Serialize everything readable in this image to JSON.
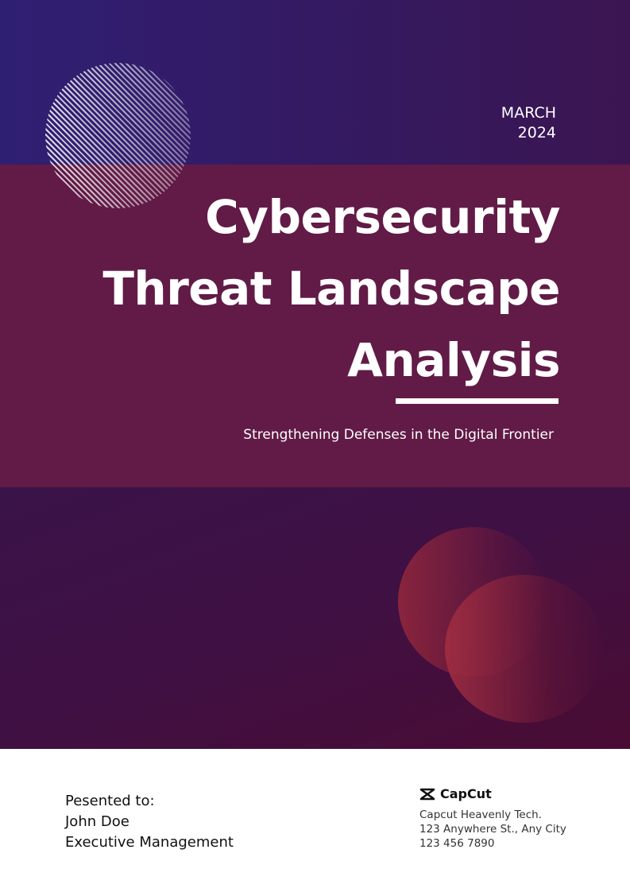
{
  "header": {
    "month": "MARCH",
    "year": "2024"
  },
  "title": {
    "line1": "Cybersecurity",
    "line2": "Threat Landscape",
    "line3": "Analysis"
  },
  "subtitle": "Strengthening Defenses in the Digital Frontier",
  "presented": {
    "label": "Pesented to:",
    "name": "John Doe",
    "role": "Executive Management"
  },
  "company": {
    "brand": "CapCut",
    "name": "Capcut Heavenly Tech.",
    "address": "123 Anywhere St., Any City",
    "phone": "123 456 7890"
  },
  "colors": {
    "top": "#2f1f73",
    "band": "#611b46",
    "lower": "#3f1043",
    "accent": "#a02d41"
  },
  "icons": {
    "logo": "capcut-logo-icon"
  }
}
